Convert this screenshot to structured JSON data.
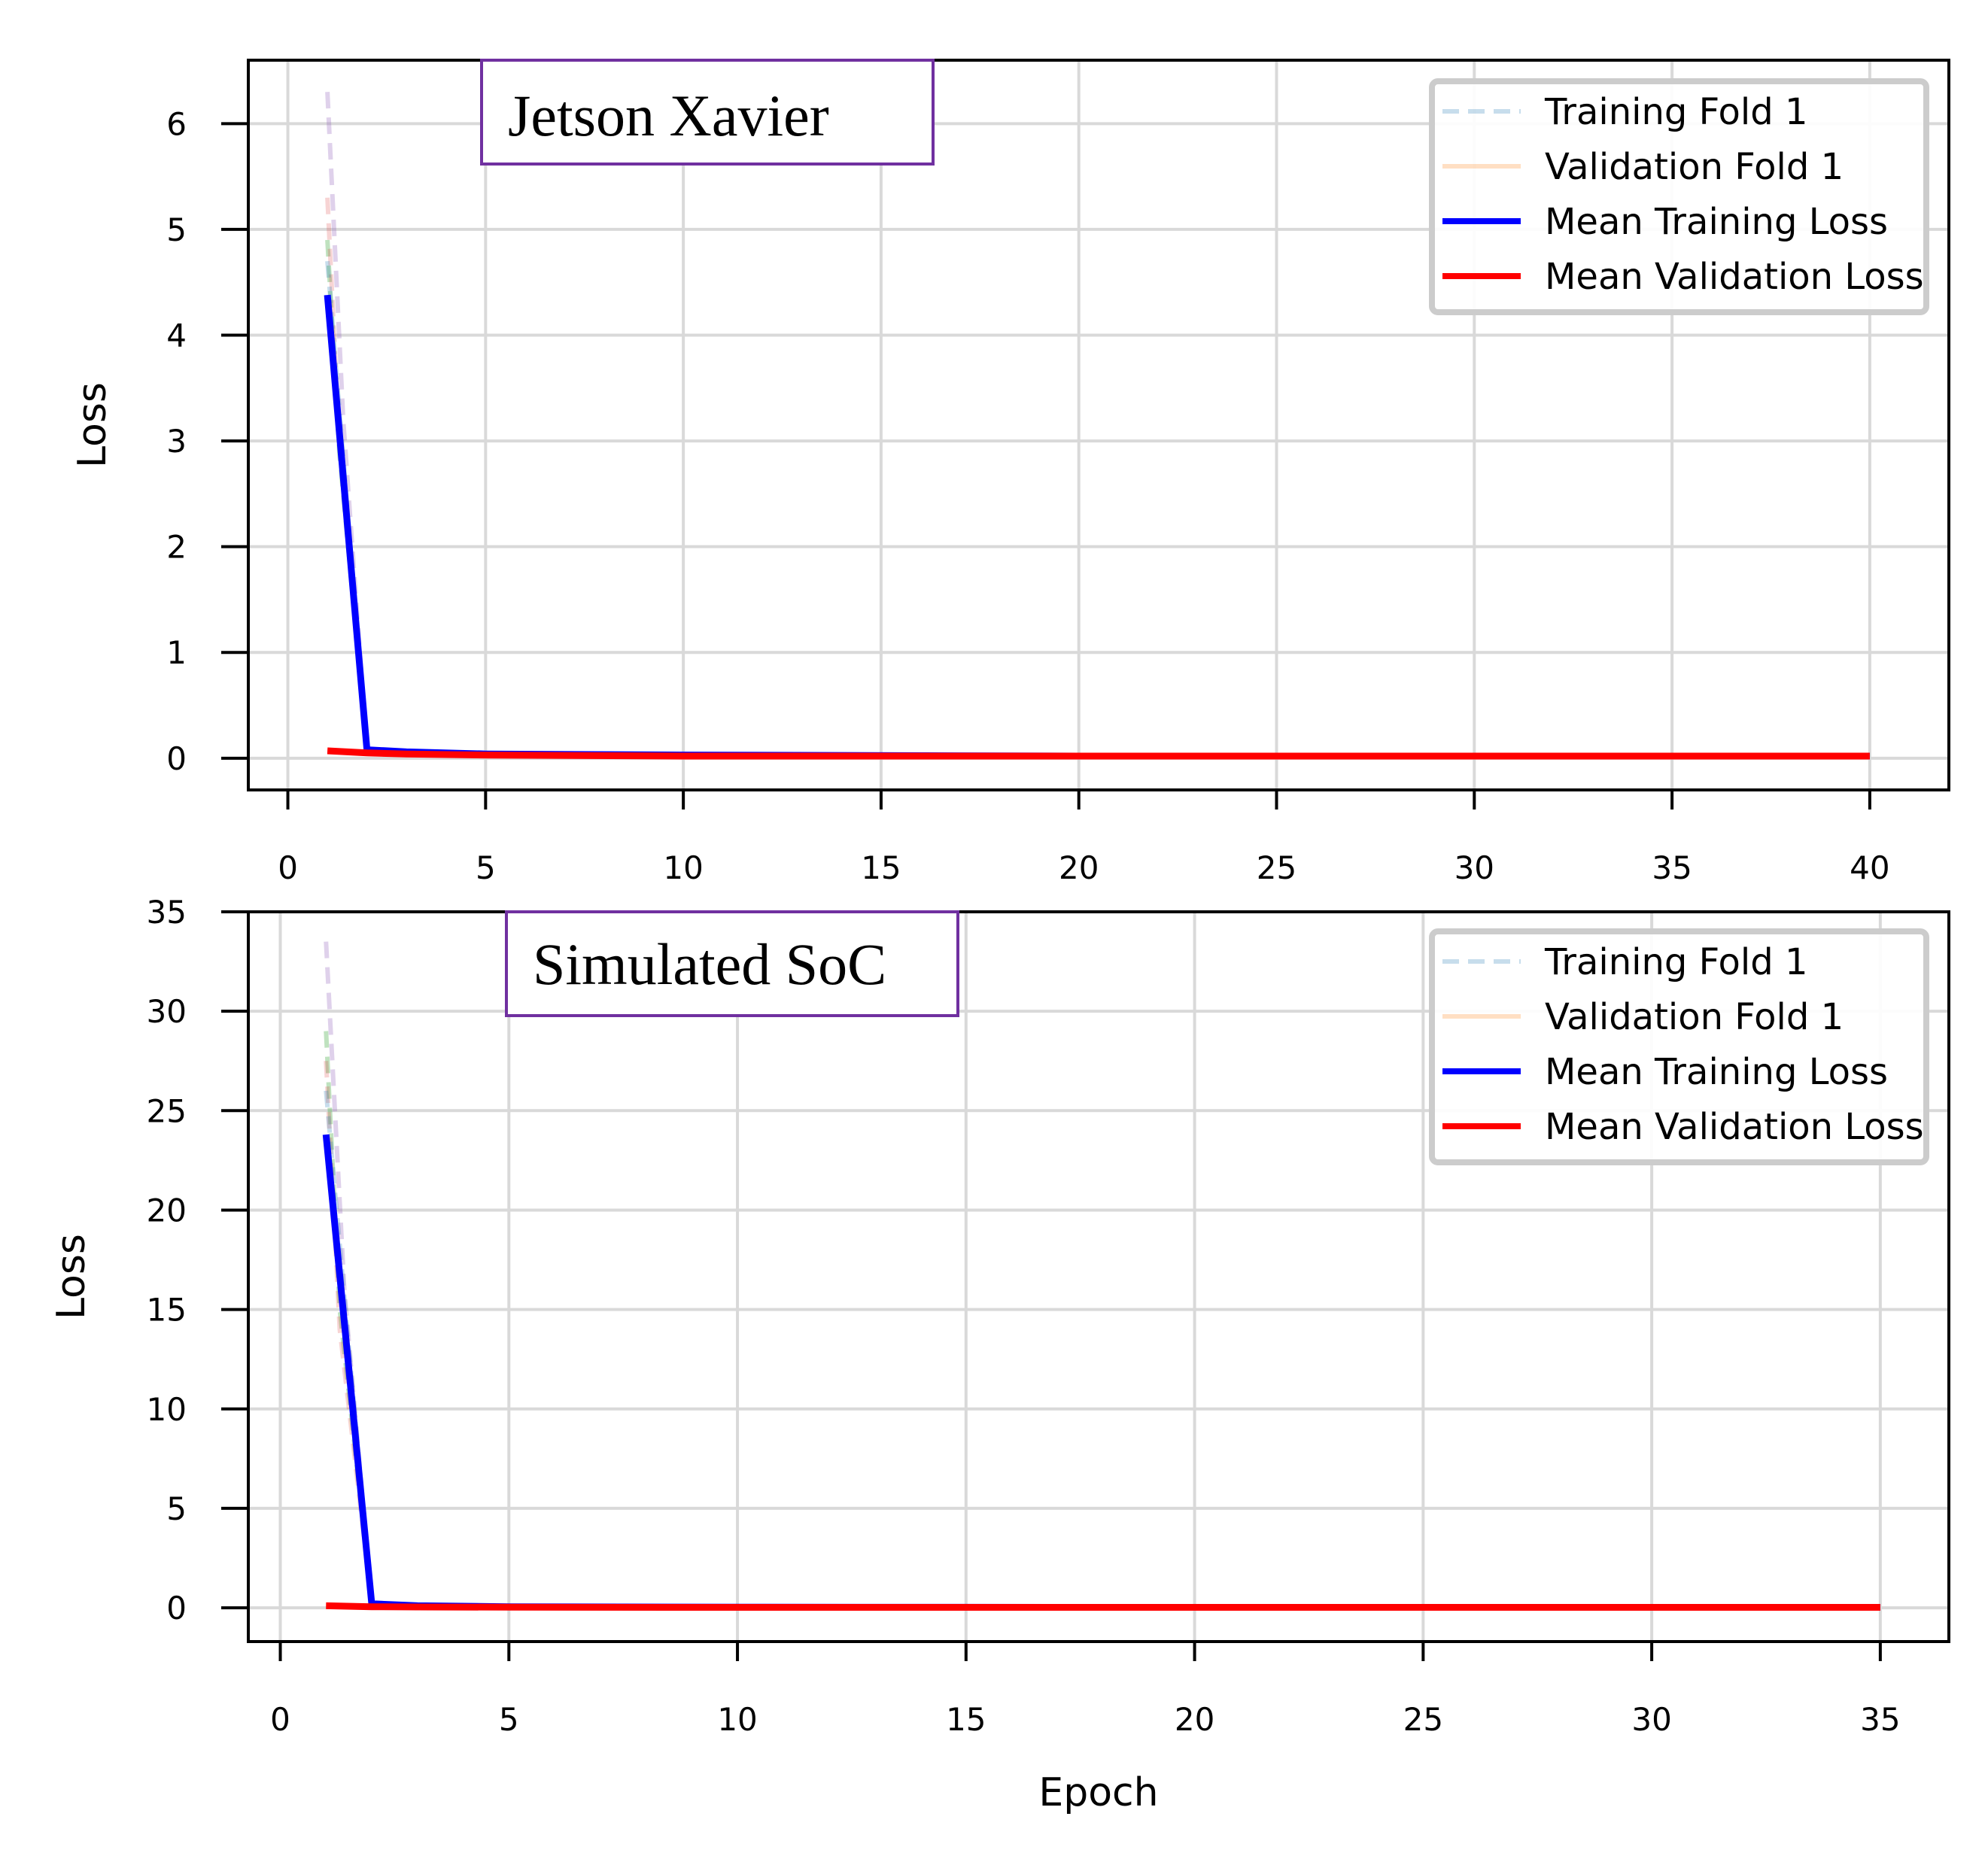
{
  "chart_data": [
    {
      "type": "line",
      "annotation": "Jetson Xavier",
      "title": "",
      "xlabel": "",
      "ylabel": "Loss",
      "xlim": [
        -1,
        42
      ],
      "ylim": [
        -0.3,
        6.6
      ],
      "xticks": [
        0,
        5,
        10,
        15,
        20,
        25,
        30,
        35,
        40
      ],
      "yticks": [
        0,
        1,
        2,
        3,
        4,
        5,
        6
      ],
      "grid": true,
      "legend_position": "top-right",
      "legend": [
        "Training Fold 1",
        "Validation Fold 1",
        "Mean Training Loss",
        "Mean Validation Loss"
      ],
      "series": [
        {
          "name": "Training Fold 1",
          "style": "dashed",
          "color": "#1f77b4",
          "opacity": 0.25,
          "x": [
            1,
            2,
            3,
            5,
            10,
            20,
            30,
            40
          ],
          "y": [
            4.7,
            0.07,
            0.05,
            0.04,
            0.03,
            0.02,
            0.02,
            0.02
          ]
        },
        {
          "name": "Validation Fold 1",
          "style": "solid",
          "color": "#ff7f0e",
          "opacity": 0.25,
          "x": [
            1,
            2,
            3,
            5,
            10,
            20,
            30,
            40
          ],
          "y": [
            0.07,
            0.05,
            0.04,
            0.03,
            0.02,
            0.02,
            0.02,
            0.02
          ]
        },
        {
          "name": "Mean Training Loss",
          "style": "solid",
          "color": "#0000ff",
          "opacity": 1,
          "x": [
            1,
            2,
            3,
            5,
            10,
            20,
            30,
            40
          ],
          "y": [
            4.38,
            0.08,
            0.06,
            0.04,
            0.03,
            0.02,
            0.02,
            0.02
          ]
        },
        {
          "name": "Mean Validation Loss",
          "style": "solid",
          "color": "#ff0000",
          "opacity": 1,
          "x": [
            1,
            2,
            3,
            5,
            10,
            20,
            30,
            40
          ],
          "y": [
            0.07,
            0.05,
            0.04,
            0.03,
            0.02,
            0.02,
            0.02,
            0.02
          ]
        }
      ],
      "extra_folds": [
        {
          "style": "dashed",
          "color": "#9467bd",
          "opacity": 0.3,
          "x": [
            1,
            1.4,
            2
          ],
          "y": [
            6.3,
            3.2,
            0.06
          ]
        },
        {
          "style": "dashed",
          "color": "#2ca02c",
          "opacity": 0.3,
          "x": [
            1,
            1.3,
            2
          ],
          "y": [
            4.9,
            2.9,
            0.07
          ]
        },
        {
          "style": "dashed",
          "color": "#d62728",
          "opacity": 0.2,
          "x": [
            1,
            1.3,
            2
          ],
          "y": [
            5.3,
            3.0,
            0.06
          ]
        }
      ]
    },
    {
      "type": "line",
      "annotation": "Simulated SoC",
      "title": "",
      "xlabel": "Epoch",
      "ylabel": "Loss",
      "xlim": [
        -0.7,
        36.5
      ],
      "ylim": [
        -1.7,
        35
      ],
      "xticks": [
        0,
        5,
        10,
        15,
        20,
        25,
        30,
        35
      ],
      "yticks": [
        0,
        5,
        10,
        15,
        20,
        25,
        30,
        35
      ],
      "grid": true,
      "legend_position": "top-right",
      "legend": [
        "Training Fold 1",
        "Validation Fold 1",
        "Mean Training Loss",
        "Mean Validation Loss"
      ],
      "series": [
        {
          "name": "Training Fold 1",
          "style": "dashed",
          "color": "#1f77b4",
          "opacity": 0.25,
          "x": [
            1,
            2,
            3,
            5,
            10,
            20,
            30,
            35
          ],
          "y": [
            26.0,
            0.2,
            0.1,
            0.05,
            0.03,
            0.02,
            0.02,
            0.02
          ]
        },
        {
          "name": "Validation Fold 1",
          "style": "solid",
          "color": "#ff7f0e",
          "opacity": 0.25,
          "x": [
            1,
            2,
            3,
            5,
            10,
            20,
            30,
            35
          ],
          "y": [
            0.1,
            0.05,
            0.04,
            0.03,
            0.02,
            0.02,
            0.02,
            0.02
          ]
        },
        {
          "name": "Mean Training Loss",
          "style": "solid",
          "color": "#0000ff",
          "opacity": 1,
          "x": [
            1,
            2,
            3,
            5,
            10,
            20,
            30,
            35
          ],
          "y": [
            23.8,
            0.2,
            0.1,
            0.05,
            0.03,
            0.02,
            0.02,
            0.02
          ]
        },
        {
          "name": "Mean Validation Loss",
          "style": "solid",
          "color": "#ff0000",
          "opacity": 1,
          "x": [
            1,
            2,
            3,
            5,
            10,
            20,
            30,
            35
          ],
          "y": [
            0.1,
            0.05,
            0.04,
            0.03,
            0.02,
            0.02,
            0.02,
            0.02
          ]
        }
      ],
      "extra_folds": [
        {
          "style": "dashed",
          "color": "#9467bd",
          "opacity": 0.3,
          "x": [
            1,
            1.4,
            2
          ],
          "y": [
            33.5,
            16.0,
            0.2
          ]
        },
        {
          "style": "dashed",
          "color": "#2ca02c",
          "opacity": 0.3,
          "x": [
            1,
            1.3,
            2
          ],
          "y": [
            29.0,
            15.0,
            0.2
          ]
        },
        {
          "style": "dashed",
          "color": "#d62728",
          "opacity": 0.2,
          "x": [
            1,
            1.3,
            2
          ],
          "y": [
            27.5,
            14.0,
            0.2
          ]
        }
      ]
    }
  ]
}
